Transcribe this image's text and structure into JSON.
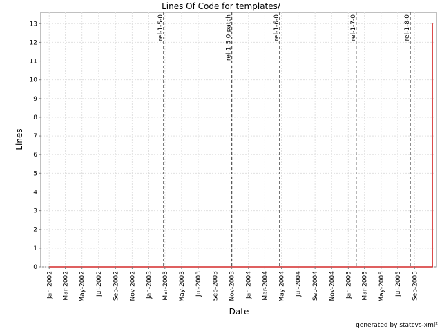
{
  "chart_data": {
    "type": "line",
    "title": "Lines Of Code for templates/",
    "xlabel": "Date",
    "ylabel": "Lines",
    "ylim": [
      0,
      13.6
    ],
    "yticks": [
      0,
      1,
      2,
      3,
      4,
      5,
      6,
      7,
      8,
      9,
      10,
      11,
      12,
      13
    ],
    "xlim": [
      "2001-12-01",
      "2005-11-20"
    ],
    "xticks": [
      {
        "date": "2002-01-01",
        "label": "Jan-2002"
      },
      {
        "date": "2002-03-01",
        "label": "Mar-2002"
      },
      {
        "date": "2002-05-01",
        "label": "May-2002"
      },
      {
        "date": "2002-07-01",
        "label": "Jul-2002"
      },
      {
        "date": "2002-09-01",
        "label": "Sep-2002"
      },
      {
        "date": "2002-11-01",
        "label": "Nov-2002"
      },
      {
        "date": "2003-01-01",
        "label": "Jan-2003"
      },
      {
        "date": "2003-03-01",
        "label": "Mar-2003"
      },
      {
        "date": "2003-05-01",
        "label": "May-2003"
      },
      {
        "date": "2003-07-01",
        "label": "Jul-2003"
      },
      {
        "date": "2003-09-01",
        "label": "Sep-2003"
      },
      {
        "date": "2003-11-01",
        "label": "Nov-2003"
      },
      {
        "date": "2004-01-01",
        "label": "Jan-2004"
      },
      {
        "date": "2004-03-01",
        "label": "Mar-2004"
      },
      {
        "date": "2004-05-01",
        "label": "May-2004"
      },
      {
        "date": "2004-07-01",
        "label": "Jul-2004"
      },
      {
        "date": "2004-09-01",
        "label": "Sep-2004"
      },
      {
        "date": "2004-11-01",
        "label": "Nov-2004"
      },
      {
        "date": "2005-01-01",
        "label": "Jan-2005"
      },
      {
        "date": "2005-03-01",
        "label": "Mar-2005"
      },
      {
        "date": "2005-05-01",
        "label": "May-2005"
      },
      {
        "date": "2005-07-01",
        "label": "Jul-2005"
      },
      {
        "date": "2005-09-01",
        "label": "Sep-2005"
      }
    ],
    "grid": true,
    "series": [
      {
        "color": "#cc0000",
        "points": [
          {
            "x": "2002-01-01",
            "y": 0
          },
          {
            "x": "2005-11-05",
            "y": 0
          },
          {
            "x": "2005-11-05",
            "y": 13
          }
        ]
      }
    ],
    "markers": [
      {
        "date": "2003-02-24",
        "label": "rel-1-5-0"
      },
      {
        "date": "2003-11-01",
        "label": "rel-1-5-0-patch"
      },
      {
        "date": "2004-04-24",
        "label": "rel-1-6-0"
      },
      {
        "date": "2005-01-30",
        "label": "rel-1-7-0"
      },
      {
        "date": "2005-08-16",
        "label": "rel-1-8-0"
      }
    ]
  },
  "footer": "generated by statcvs-xml²"
}
